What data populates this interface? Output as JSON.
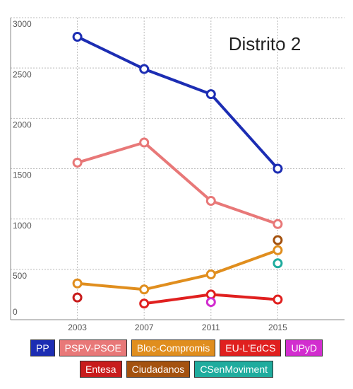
{
  "chart_data": {
    "type": "line",
    "title": "Distrito 2",
    "x": [
      2003,
      2007,
      2011,
      2015
    ],
    "xlim": [
      1999,
      2019
    ],
    "xticks": [
      2003,
      2007,
      2011,
      2015
    ],
    "ylim": [
      0,
      3000
    ],
    "yticks": [
      0,
      500,
      1000,
      1500,
      2000,
      2500,
      3000
    ],
    "grid": true,
    "series": [
      {
        "name": "PP",
        "color": "#1c2db3",
        "values": [
          2810,
          2490,
          2240,
          1500
        ]
      },
      {
        "name": "PSPV-PSOE",
        "color": "#e87878",
        "values": [
          1560,
          1760,
          1180,
          950
        ]
      },
      {
        "name": "Bloc-Compromis",
        "color": "#e08e1e",
        "values": [
          360,
          300,
          450,
          690
        ]
      },
      {
        "name": "EU-L'EdCS",
        "color": "#e0201f",
        "values": [
          null,
          160,
          250,
          200
        ]
      },
      {
        "name": "UPyD",
        "color": "#d22dcf",
        "values": [
          null,
          null,
          175,
          null
        ]
      },
      {
        "name": "Entesa",
        "color": "#c81c1c",
        "values": [
          220,
          null,
          null,
          null
        ]
      },
      {
        "name": "Ciudadanos",
        "color": "#a4520f",
        "values": [
          null,
          null,
          null,
          790
        ]
      },
      {
        "name": "CSenMoviment",
        "color": "#1fac9e",
        "values": [
          null,
          null,
          null,
          560
        ]
      }
    ]
  }
}
